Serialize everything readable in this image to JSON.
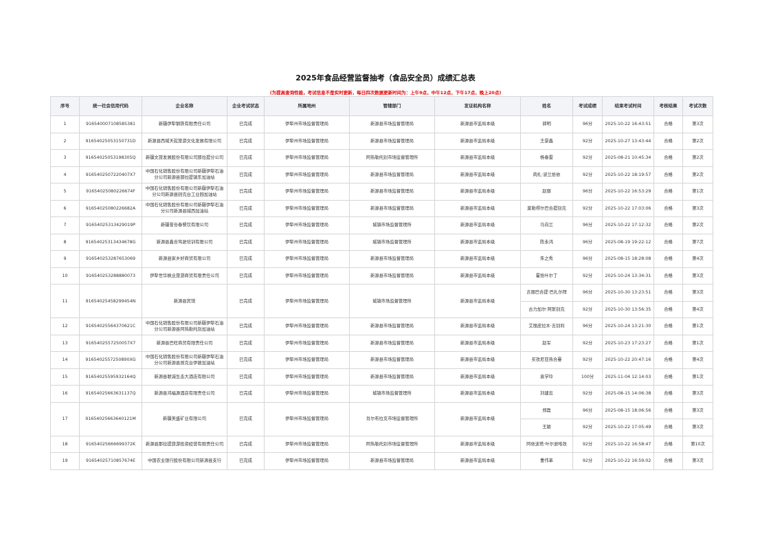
{
  "title": "2025年食品经营监督抽考（食品安全员）成绩汇总表",
  "subtitle": "(为提高查询性能，考试信息不是实时更新，每日四次数据更新时间为：上午9点，中午12点，下午17点，晚上20点)",
  "colors": {
    "subtitle": "#e60000",
    "header_bg": "#f3f4f7",
    "border": "#d5d5d8"
  },
  "columns": [
    "序号",
    "统一社会信用代码",
    "企业名称",
    "企业考试状态",
    "所属地州",
    "管辖部门",
    "发证机构名称",
    "姓名",
    "考试成绩",
    "结束考试时间",
    "考核结果",
    "考试次数"
  ],
  "rows": [
    {
      "no": "1",
      "code": "916540007108585381",
      "company": "新疆伊犁钢铁有限责任公司",
      "status": "已完成",
      "region": "伊犁州市场监督管理局",
      "dept": "新源县市场监督管理局",
      "issuer": "新源县市监局本级",
      "people": [
        {
          "name": "郭明",
          "score": "96分",
          "time": "2025-10-22 16:43:51",
          "result": "合格",
          "count": "第3次"
        }
      ]
    },
    {
      "no": "2",
      "code": "91654025053150731D",
      "company": "新源县西域天驼旅游文化发展有限公司",
      "status": "已完成",
      "region": "伊犁州市场监督管理局",
      "dept": "新源县市场监督管理局",
      "issuer": "新源县市监局本级",
      "people": [
        {
          "name": "王景鑫",
          "score": "92分",
          "time": "2025-10-27 13:43:44",
          "result": "合格",
          "count": "第2次"
        }
      ]
    },
    {
      "no": "3",
      "code": "91654025053198305Q",
      "company": "新疆文旅发展股份有限公司那拉提分公司",
      "status": "已完成",
      "region": "伊犁州市场监督管理局",
      "dept": "阿热勒托别市场监督管理所",
      "issuer": "新源县市监局本级",
      "people": [
        {
          "name": "杨春雷",
          "score": "92分",
          "time": "2025-08-21 10:45:34",
          "result": "合格",
          "count": "第2次"
        }
      ]
    },
    {
      "no": "4",
      "code": "91654025072204​07X7",
      "company": "中国石化销售股份有限公司新疆伊犁石油分公司新源县那拉提镇东加油站",
      "status": "已完成",
      "region": "伊犁州市场监督管理局",
      "dept": "新源县市场监督管理局",
      "issuer": "新源县市监局本级",
      "people": [
        {
          "name": "肉扎·波兰拾依",
          "score": "92分",
          "time": "2025-10-22 18:19:57",
          "result": "合格",
          "count": "第2次"
        }
      ]
    },
    {
      "no": "5",
      "code": "91654025080226674F",
      "company": "中国石化销售股份有限公司新疆伊犁石油分公司新源县则克台工业园加油站",
      "status": "已完成",
      "region": "伊犁州市场监督管理局",
      "dept": "新源县市场监督管理局",
      "issuer": "新源县市监局本级",
      "people": [
        {
          "name": "赵丽",
          "score": "96分",
          "time": "2025-10-22 16:53:29",
          "result": "合格",
          "count": "第1次"
        }
      ]
    },
    {
      "no": "6",
      "code": "91654025080226682A",
      "company": "中国石化销售股份有限公司新疆伊犁石油分公司新源县城西加油站",
      "status": "已完成",
      "region": "伊犁州市场监督管理局",
      "dept": "新源县市场监督管理局",
      "issuer": "新源县市监局本级",
      "people": [
        {
          "name": "莫勒得尔巴合提别克",
          "score": "92分",
          "time": "2025-10-22 17:03:06",
          "result": "合格",
          "count": "第3次"
        }
      ]
    },
    {
      "no": "7",
      "code": "91654025313429019P",
      "company": "新疆誉合春餐饮有限公司",
      "status": "已完成",
      "region": "伊犁州市场监督管理局",
      "dept": "城镇市场监督管理所",
      "issuer": "新源县市监局本级",
      "people": [
        {
          "name": "马向兰",
          "score": "96分",
          "time": "2025-10-22 17:12:32",
          "result": "合格",
          "count": "第2次"
        }
      ]
    },
    {
      "no": "8",
      "code": "91654025313434678G",
      "company": "新源县鑫合驾驶培训有限公司",
      "status": "已完成",
      "region": "伊犁州市场监督管理局",
      "dept": "城镇市场监督管理所",
      "issuer": "新源县市监局本级",
      "people": [
        {
          "name": "陈永鸿",
          "score": "96分",
          "time": "2025-08-19 19:22:12",
          "result": "合格",
          "count": "第7次"
        }
      ]
    },
    {
      "no": "9",
      "code": "916540253287653069",
      "company": "新源县家乡好商贸有限公司",
      "status": "已完成",
      "region": "伊犁州市场监督管理局",
      "dept": "新源县市场监督管理局",
      "issuer": "新源县市监局本级",
      "people": [
        {
          "name": "朱之秀",
          "score": "96分",
          "time": "2025-08-15 18:28:08",
          "result": "合格",
          "count": "第4次"
        }
      ]
    },
    {
      "no": "10",
      "code": "916540253288880073",
      "company": "伊犁世华枫业旅游商贸有限责任公司",
      "status": "已完成",
      "region": "伊犁州市场监督管理局",
      "dept": "新源县市场监督管理局",
      "issuer": "新源县市监局本级",
      "people": [
        {
          "name": "霍拾叶尔丁",
          "score": "92分",
          "time": "2025-10-24 13:34:31",
          "result": "合格",
          "count": "第3次"
        }
      ]
    },
    {
      "no": "11",
      "code": "91654025458299454N",
      "company": "新源县宾馆",
      "status": "已完成",
      "region": "伊犁州市场监督管理局",
      "dept": "城镇市场监督管理所",
      "issuer": "新源县市监局本级",
      "people": [
        {
          "name": "吉丽巴合提·巴扎尔拜",
          "score": "96分",
          "time": "2025-10-30 13:23:51",
          "result": "合格",
          "count": "第3次"
        },
        {
          "name": "古力加尔·阿斯别克",
          "score": "92分",
          "time": "2025-10-30 13:56:35",
          "result": "合格",
          "count": "第4次"
        }
      ]
    },
    {
      "no": "12",
      "code": "91654025564370621C",
      "company": "中国石化销售股份有限公司新疆伊犁石油分公司新源县阿热勒托别加油站",
      "status": "已完成",
      "region": "伊犁州市场监督管理局",
      "dept": "新源县市场监督管理局",
      "issuer": "新源县市监局本级",
      "people": [
        {
          "name": "艾丽皮拉木·吉别利",
          "score": "96分",
          "time": "2025-10-24 13:21:30",
          "result": "合格",
          "count": "第1次"
        }
      ]
    },
    {
      "no": "13",
      "code": "91654025572500​57X7",
      "company": "新源县巴旺商贸有限责任公司",
      "status": "已完成",
      "region": "伊犁州市场监督管理局",
      "dept": "新源县市场监督管理局",
      "issuer": "新源县市监局本级",
      "people": [
        {
          "name": "赵军",
          "score": "92分",
          "time": "2025-10-23 17:23:27",
          "result": "合格",
          "count": "第1次"
        }
      ]
    },
    {
      "no": "14",
      "code": "91654025572508​90XG",
      "company": "中国石化销售股份有限公司新疆伊犁石油分公司新源县则克台伊敦加油站",
      "status": "已完成",
      "region": "伊犁州市场监督管理局",
      "dept": "新源县市场监督管理局",
      "issuer": "新源县市监局本级",
      "people": [
        {
          "name": "买孜尼亚热合曼",
          "score": "92分",
          "time": "2025-10-22 20:47:16",
          "result": "合格",
          "count": "第4次"
        }
      ]
    },
    {
      "no": "15",
      "code": "91654025595932164Q",
      "company": "新源县联诚生态大酒店有限公司",
      "status": "已完成",
      "region": "伊犁州市场监督管理局",
      "dept": "新源县市场监督管理局",
      "issuer": "新源县市监局本级",
      "people": [
        {
          "name": "袁学玲",
          "score": "100分",
          "time": "2025-11-04 12:14:03",
          "result": "合格",
          "count": "第1次"
        }
      ]
    },
    {
      "no": "16",
      "code": "91654025663631137Q",
      "company": "新源县鸿福源酒店有限责任公司",
      "status": "已完成",
      "region": "伊犁州市场监督管理局",
      "dept": "城镇市场监督管理所",
      "issuer": "新源县市监局本级",
      "people": [
        {
          "name": "刘建忠",
          "score": "92分",
          "time": "2025-08-15 14:06:38",
          "result": "合格",
          "count": "第3次"
        }
      ]
    },
    {
      "no": "17",
      "code": "91654025663640121M",
      "company": "新疆美盛矿业有限公司",
      "status": "已完成",
      "region": "伊犁州市场监督管理局",
      "dept": "肖尔布拉克市场监督管理所",
      "issuer": "新源县市监局本级",
      "people": [
        {
          "name": "郑磊",
          "score": "96分",
          "time": "2025-08-15 18:06:56",
          "result": "合格",
          "count": "第3次"
        },
        {
          "name": "王颖",
          "score": "92分",
          "time": "2025-10-22 17:05:49",
          "result": "合格",
          "count": "第3次"
        }
      ]
    },
    {
      "no": "18",
      "code": "91654025666699372K",
      "company": "新源县那拉提旅游投资经营有限责任公司",
      "status": "已完成",
      "region": "伊犁州市场监督管理局",
      "dept": "阿热勒托别市场监督管理所",
      "issuer": "新源县市监局本级",
      "people": [
        {
          "name": "阿依波塔·叶尔逊哈孜",
          "score": "92分",
          "time": "2025-10-22 16:58:47",
          "result": "合格",
          "count": "第10次"
        }
      ]
    },
    {
      "no": "19",
      "code": "91654025710857674E",
      "company": "中国农业银行股份有限公司新源县支行",
      "status": "已完成",
      "region": "伊犁州市场监督管理局",
      "dept": "新源县市场监督管理局",
      "issuer": "新源县市监局本级",
      "people": [
        {
          "name": "曹伟革",
          "score": "92分",
          "time": "2025-10-22 16:59:02",
          "result": "合格",
          "count": "第3次"
        }
      ]
    }
  ]
}
